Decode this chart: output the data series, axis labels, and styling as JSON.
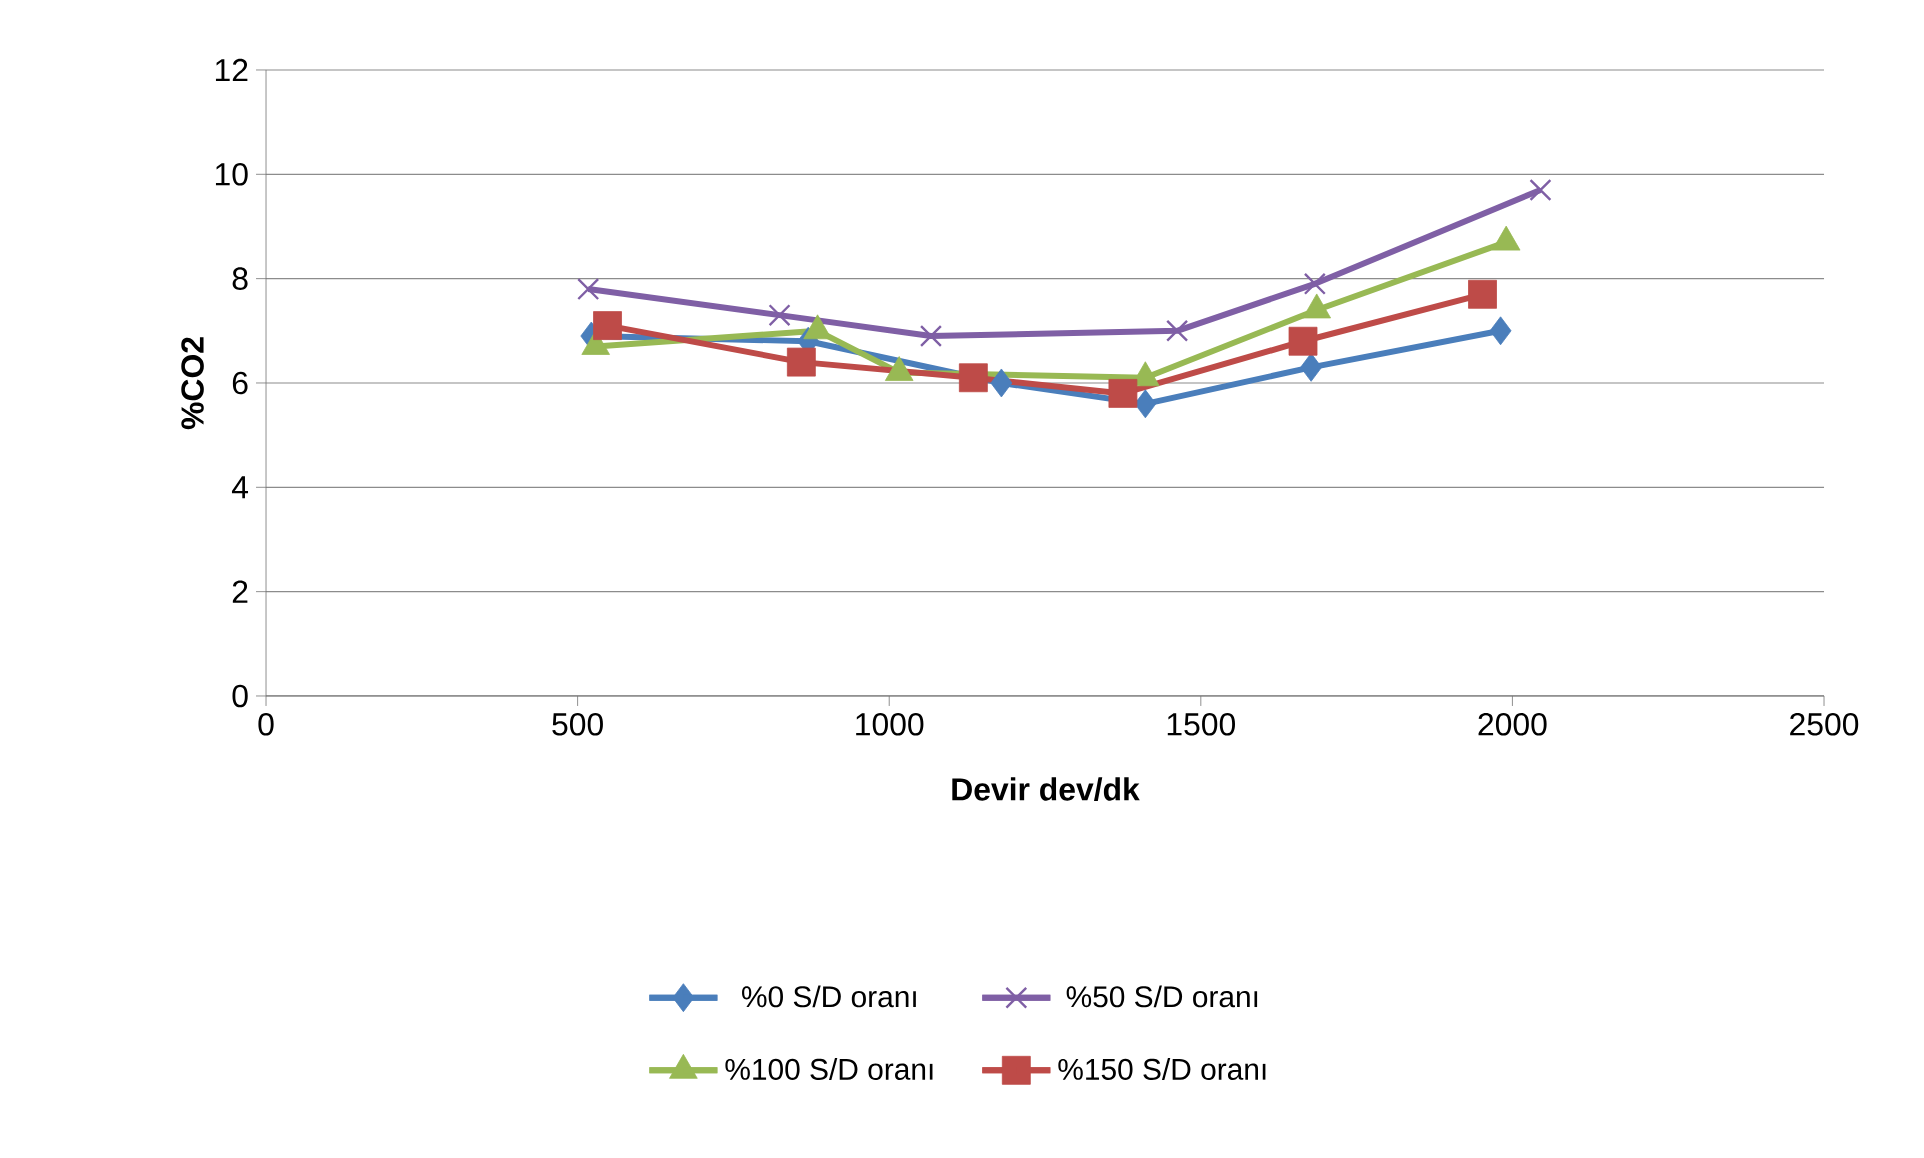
{
  "chart_data": {
    "type": "line",
    "xlabel": "Devir dev/dk",
    "ylabel": "%CO2",
    "xlim": [
      0,
      2500
    ],
    "xticks": [
      0,
      500,
      1000,
      1500,
      2000,
      2500
    ],
    "ylim": [
      0,
      12
    ],
    "yticks": [
      0,
      2,
      4,
      6,
      8,
      10,
      12
    ],
    "grid": "y",
    "legend": "bottom",
    "line_style": "solid",
    "series": [
      {
        "name": "%0 S/D oranı",
        "color": "#4a7ebb",
        "marker": "diamond",
        "x": [
          522,
          870,
          1180,
          1411,
          1677,
          1981
        ],
        "values": [
          6.9,
          6.8,
          6.0,
          5.6,
          6.3,
          7.0
        ]
      },
      {
        "name": "%50 S/D oranı",
        "color": "#7f5fa5",
        "marker": "cross",
        "x": [
          517,
          824,
          1067,
          1462,
          1683,
          2045
        ],
        "values": [
          7.8,
          7.3,
          6.9,
          7.0,
          7.9,
          9.7
        ]
      },
      {
        "name": "%100 S/D oranı",
        "color": "#98b954",
        "marker": "triangle",
        "x": [
          529,
          885,
          1016,
          1411,
          1686,
          1990
        ],
        "values": [
          6.7,
          7.0,
          6.2,
          6.1,
          7.4,
          8.7
        ]
      },
      {
        "name": "%150 S/D oranı",
        "color": "#be4b48",
        "marker": "square",
        "x": [
          548,
          859,
          1135,
          1375,
          1664,
          1952
        ],
        "values": [
          7.1,
          6.4,
          6.1,
          5.8,
          6.8,
          7.7
        ]
      }
    ]
  }
}
